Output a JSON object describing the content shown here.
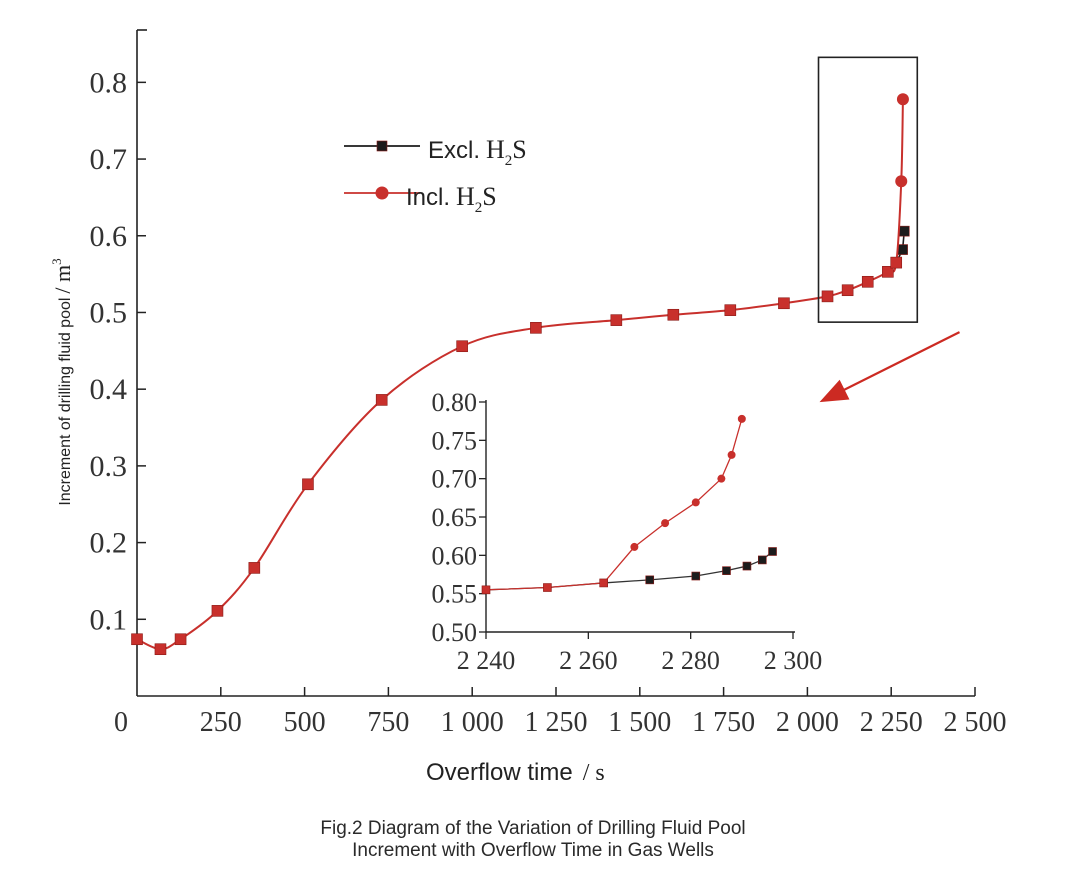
{
  "caption": {
    "line1": "Fig.2 Diagram of the Variation of Drilling Fluid Pool",
    "line2": "Increment with Overflow Time in Gas Wells"
  },
  "colors": {
    "excl": "#1c1c1c",
    "incl": "#c8302c",
    "arrow": "#cc2a22",
    "axis": "#222222"
  },
  "chart_data": [
    {
      "type": "line",
      "xlabel": "Overflow time",
      "xlabel_unit": "/ s",
      "ylabel": "Increment of drilling fluid pool",
      "ylabel_unit": "/ m",
      "ylabel_unit_sup": "3",
      "xlim": [
        0,
        2500
      ],
      "ylim": [
        0,
        0.85
      ],
      "x_ticks": [
        0,
        250,
        500,
        750,
        1000,
        1250,
        1500,
        1750,
        2000,
        2250,
        2500
      ],
      "x_tick_labels": [
        "0",
        "250",
        "500",
        "750",
        "1 000",
        "1 250",
        "1 500",
        "1 750",
        "2 000",
        "2 250",
        "2 500"
      ],
      "y_ticks": [
        0.1,
        0.2,
        0.3,
        0.4,
        0.5,
        0.6,
        0.7,
        0.8
      ],
      "y_tick_labels": [
        "0.1",
        "0.2",
        "0.3",
        "0.4",
        "0.5",
        "0.6",
        "0.7",
        "0.8"
      ],
      "legend": {
        "position": "upper-left",
        "entries": [
          {
            "key": "excl",
            "label": "Excl.",
            "formula": "H",
            "sub": "2",
            "tail": "S",
            "marker": "square"
          },
          {
            "key": "incl",
            "label": "Incl.",
            "formula": "H",
            "sub": "2",
            "tail": "S",
            "marker": "circle"
          }
        ]
      },
      "series": [
        {
          "name": "Incl. H2S",
          "key": "incl",
          "x": [
            0,
            70,
            130,
            240,
            350,
            510,
            730,
            970,
            1190,
            1430,
            1600,
            1770,
            1930,
            2060,
            2120,
            2180,
            2240,
            2265,
            2280,
            2285
          ],
          "y": [
            0.074,
            0.061,
            0.074,
            0.111,
            0.167,
            0.276,
            0.386,
            0.456,
            0.48,
            0.49,
            0.497,
            0.503,
            0.512,
            0.521,
            0.529,
            0.54,
            0.553,
            0.565,
            0.671,
            0.778
          ],
          "markers": [
            1,
            1,
            1,
            1,
            1,
            1,
            1,
            1,
            1,
            1,
            1,
            1,
            1,
            1,
            1,
            1,
            1,
            1,
            1,
            1
          ],
          "marker_shapes": [
            "square",
            "square",
            "square",
            "square",
            "square",
            "square",
            "square",
            "square",
            "square",
            "square",
            "square",
            "square",
            "square",
            "square",
            "square",
            "square",
            "square",
            "square",
            "circle",
            "circle"
          ]
        },
        {
          "name": "Excl. H2S",
          "key": "excl",
          "x": [
            2265,
            2284,
            2289
          ],
          "y": [
            0.565,
            0.582,
            0.606
          ]
        }
      ],
      "highlight_box": {
        "x": [
          2060,
          2295
        ],
        "y": [
          0.49,
          0.83
        ]
      }
    },
    {
      "type": "line",
      "inset": true,
      "xlim": [
        2240,
        2300
      ],
      "ylim": [
        0.5,
        0.8
      ],
      "x_ticks": [
        2240,
        2260,
        2280,
        2300
      ],
      "x_tick_labels": [
        "2 240",
        "2 260",
        "2 280",
        "2 300"
      ],
      "y_ticks": [
        0.5,
        0.55,
        0.6,
        0.65,
        0.7,
        0.75,
        0.8
      ],
      "y_tick_labels": [
        "0.50",
        "0.55",
        "0.60",
        "0.65",
        "0.70",
        "0.75",
        "0.80"
      ],
      "series": [
        {
          "name": "Excl. H2S",
          "key": "excl",
          "x": [
            2240,
            2252,
            2263,
            2272,
            2281,
            2287,
            2291,
            2294,
            2296
          ],
          "y": [
            0.555,
            0.558,
            0.564,
            0.568,
            0.573,
            0.58,
            0.586,
            0.594,
            0.605
          ]
        },
        {
          "name": "Incl. H2S",
          "key": "incl",
          "x": [
            2240,
            2252,
            2263,
            2269,
            2275,
            2281,
            2286,
            2288,
            2290
          ],
          "y": [
            0.555,
            0.558,
            0.564,
            0.611,
            0.642,
            0.669,
            0.7,
            0.731,
            0.778
          ]
        }
      ]
    }
  ]
}
